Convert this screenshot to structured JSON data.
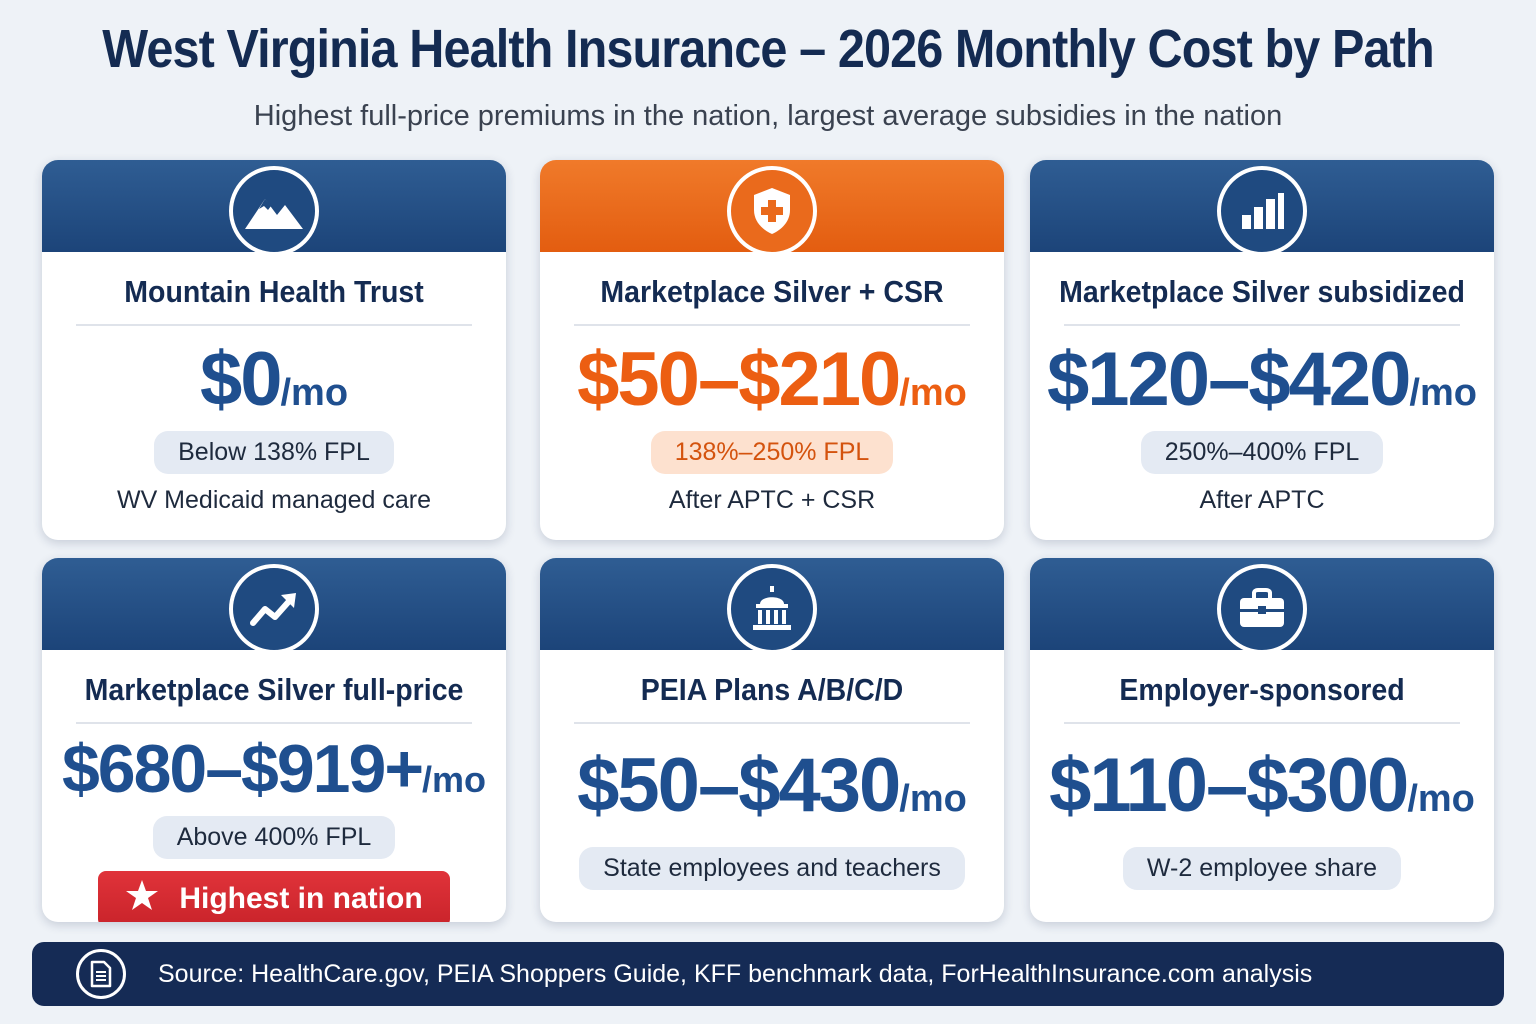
{
  "header": {
    "title": "West Virginia Health Insurance – 2026 Monthly Cost by Path",
    "subtitle": "Highest full-price premiums in the nation, largest average subsidies in the nation"
  },
  "colors": {
    "navy": "#142b52",
    "blue": "#1f4f8f",
    "orange": "#ec5e12",
    "red": "#d62a31"
  },
  "cards": [
    {
      "icon": "mountain-icon",
      "title": "Mountain Health Trust",
      "price": "$0",
      "unit": "/mo",
      "pill": "Below 138% FPL",
      "note": "WV Medicaid managed care"
    },
    {
      "icon": "shield-cross-icon",
      "title": "Marketplace Silver + CSR",
      "price": "$50–$210",
      "unit": "/mo",
      "pill": "138%–250% FPL",
      "note": "After APTC + CSR"
    },
    {
      "icon": "bar-chart-icon",
      "title": "Marketplace Silver subsidized",
      "price": "$120–$420",
      "unit": "/mo",
      "pill": "250%–400% FPL",
      "note": "After APTC"
    },
    {
      "icon": "trend-up-icon",
      "title": "Marketplace Silver full-price",
      "price": "$680–$919+",
      "unit": "/mo",
      "pill": "Above 400% FPL",
      "badge": "Highest in nation"
    },
    {
      "icon": "capitol-icon",
      "title": "PEIA Plans A/B/C/D",
      "price": "$50–$430",
      "unit": "/mo",
      "pill": "State employees and teachers"
    },
    {
      "icon": "briefcase-icon",
      "title": "Employer-sponsored",
      "price": "$110–$300",
      "unit": "/mo",
      "pill": "W-2 employee share"
    }
  ],
  "footer": {
    "icon": "document-icon",
    "source": "Source: HealthCare.gov, PEIA Shoppers Guide, KFF benchmark data, ForHealthInsurance.com analysis"
  }
}
